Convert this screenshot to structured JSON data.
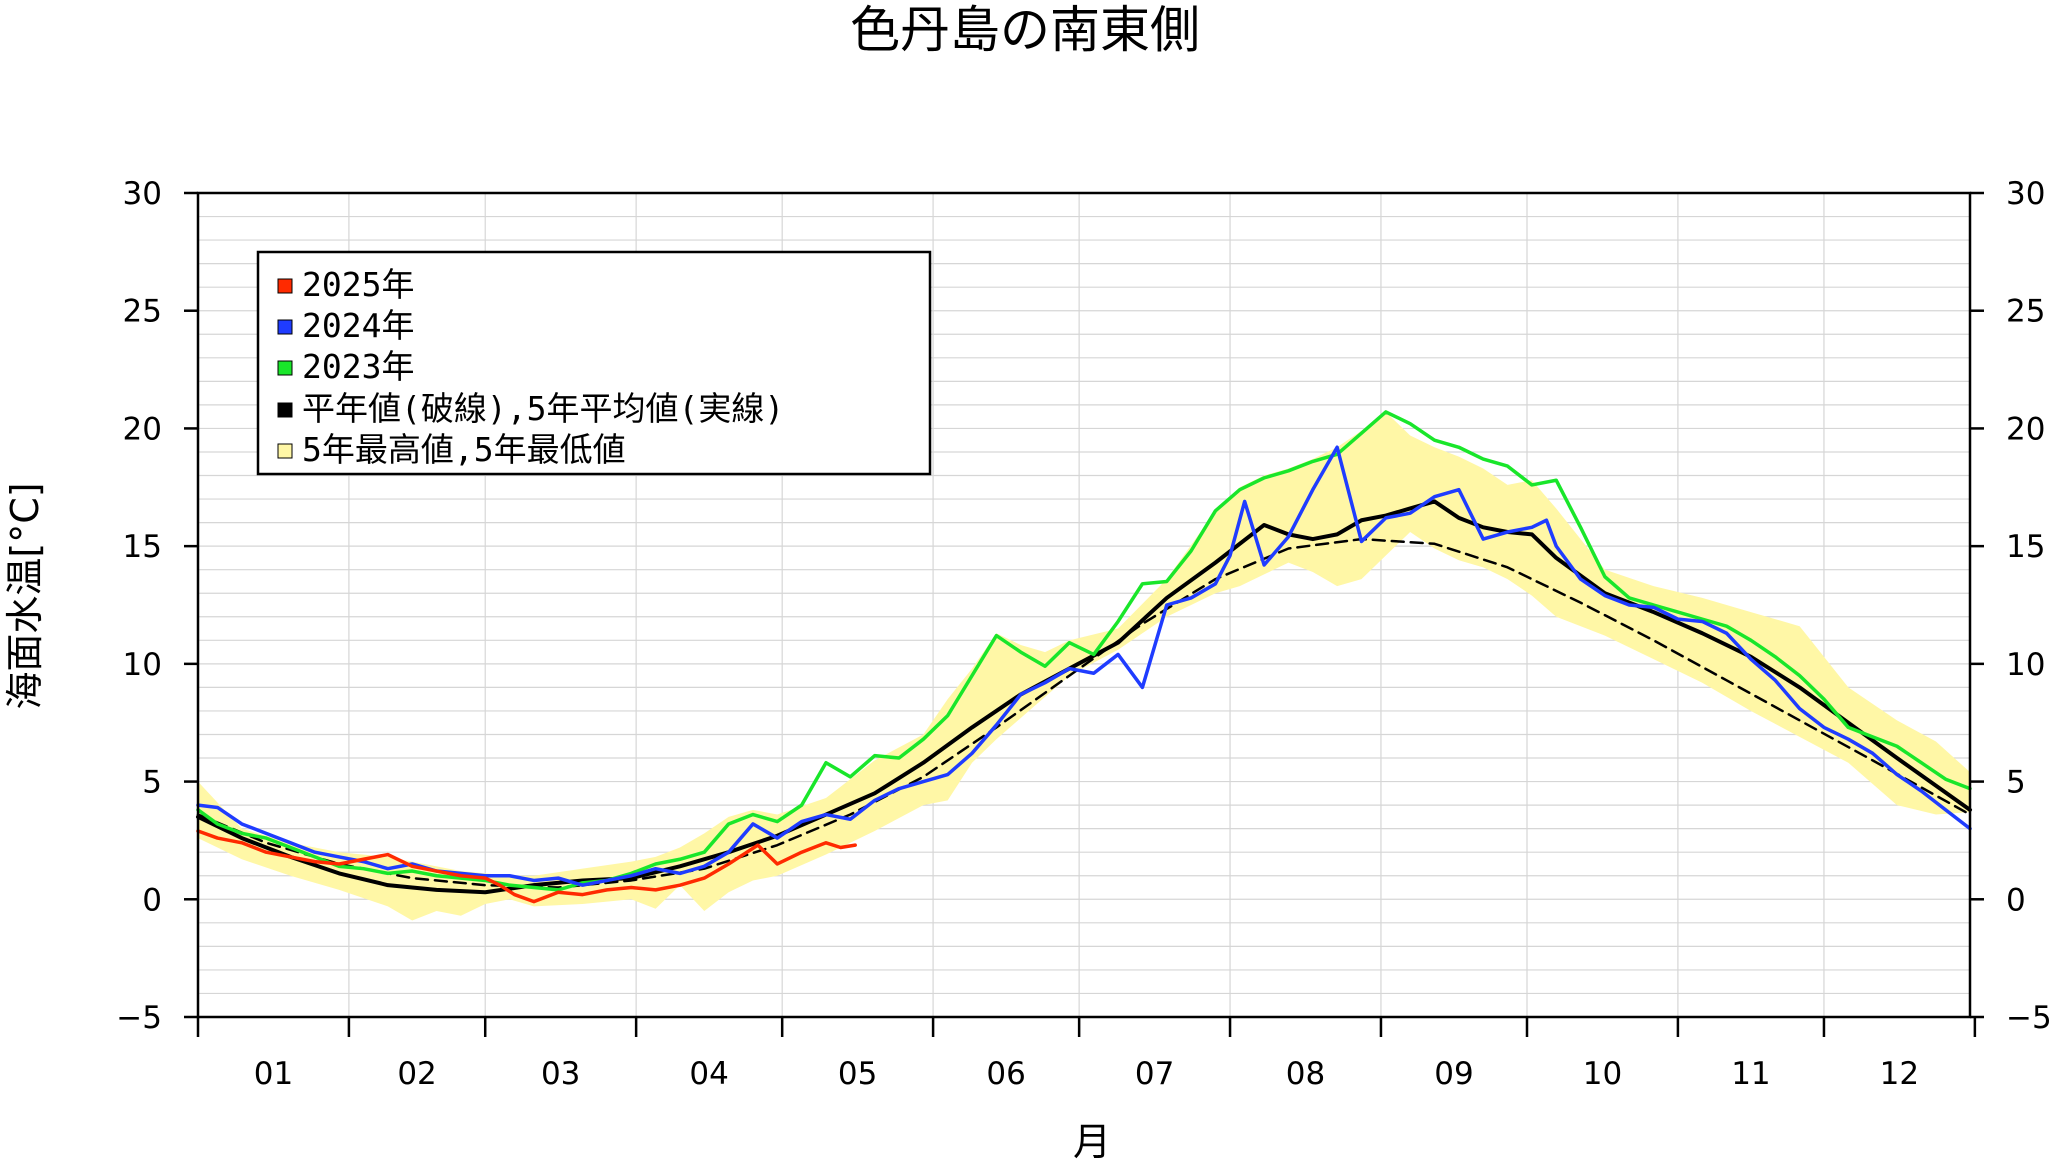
{
  "chart_data": {
    "type": "line",
    "title": "色丹島の南東側",
    "xlabel": "月",
    "ylabel": "海面水温[°C]",
    "ylim": [
      -5,
      30
    ],
    "y_ticks": [
      "−5",
      "0",
      "5",
      "10",
      "15",
      "20",
      "25",
      "30"
    ],
    "categories": [
      "01",
      "02",
      "03",
      "04",
      "05",
      "06",
      "07",
      "08",
      "09",
      "10",
      "11",
      "12"
    ],
    "grid": true,
    "legend_position": "top-left",
    "colors": {
      "y2025": "#ff2a00",
      "y2024": "#1f3cff",
      "y2023": "#19e62a",
      "normal": "#000000",
      "band": "#fff7a6"
    },
    "legend": [
      {
        "label": "2025年",
        "color": "#ff2a00"
      },
      {
        "label": "2024年",
        "color": "#1f3cff"
      },
      {
        "label": "2023年",
        "color": "#19e62a"
      },
      {
        "label": "平年値(破線),5年平均値(実線)",
        "color": "#000000"
      },
      {
        "label": "5年最高値,5年最低値",
        "color": "#fff7a6"
      }
    ],
    "x_unit": "day of year",
    "series": [
      {
        "name": "2025年",
        "x": [
          1,
          5,
          10,
          15,
          20,
          25,
          30,
          35,
          40,
          45,
          50,
          55,
          60,
          63,
          66,
          70,
          75,
          80,
          85,
          90,
          95,
          100,
          105,
          110,
          113,
          116,
          120,
          125,
          130,
          133,
          136
        ],
        "values": [
          2.9,
          2.6,
          2.4,
          2.0,
          1.8,
          1.6,
          1.5,
          1.7,
          1.9,
          1.4,
          1.2,
          1.0,
          0.9,
          0.6,
          0.2,
          -0.1,
          0.3,
          0.2,
          0.4,
          0.5,
          0.4,
          0.6,
          0.9,
          1.5,
          1.9,
          2.3,
          1.5,
          2.0,
          2.4,
          2.2,
          2.3
        ]
      },
      {
        "name": "2024年",
        "x": [
          1,
          5,
          10,
          15,
          20,
          25,
          30,
          35,
          40,
          45,
          50,
          55,
          60,
          65,
          70,
          75,
          80,
          85,
          90,
          95,
          100,
          105,
          110,
          115,
          120,
          125,
          130,
          135,
          140,
          145,
          150,
          155,
          160,
          165,
          170,
          175,
          180,
          185,
          190,
          195,
          200,
          205,
          210,
          213,
          216,
          220,
          225,
          230,
          235,
          240,
          245,
          250,
          255,
          260,
          265,
          270,
          275,
          278,
          280,
          285,
          290,
          295,
          300,
          305,
          310,
          315,
          320,
          325,
          330,
          335,
          340,
          345,
          350,
          355,
          360,
          365
        ],
        "values": [
          4.0,
          3.9,
          3.2,
          2.8,
          2.4,
          2.0,
          1.8,
          1.6,
          1.3,
          1.5,
          1.2,
          1.1,
          1.0,
          1.0,
          0.8,
          0.9,
          0.6,
          0.8,
          1.0,
          1.3,
          1.1,
          1.4,
          2.0,
          3.2,
          2.6,
          3.3,
          3.6,
          3.4,
          4.2,
          4.7,
          5.0,
          5.3,
          6.2,
          7.4,
          8.7,
          9.2,
          9.8,
          9.6,
          10.4,
          9.0,
          12.5,
          12.8,
          13.4,
          14.6,
          16.9,
          14.2,
          15.4,
          17.4,
          19.2,
          15.2,
          16.2,
          16.4,
          17.1,
          17.4,
          15.3,
          15.6,
          15.8,
          16.1,
          15.0,
          13.6,
          12.9,
          12.5,
          12.4,
          11.9,
          11.8,
          11.3,
          10.2,
          9.3,
          8.1,
          7.3,
          6.8,
          6.2,
          5.3,
          4.6,
          3.8,
          3.0
        ]
      },
      {
        "name": "2023年",
        "x": [
          1,
          5,
          10,
          15,
          20,
          25,
          30,
          35,
          40,
          45,
          50,
          55,
          60,
          65,
          70,
          75,
          80,
          85,
          90,
          95,
          100,
          105,
          110,
          115,
          120,
          125,
          130,
          135,
          140,
          145,
          150,
          155,
          160,
          165,
          170,
          175,
          180,
          185,
          190,
          195,
          200,
          205,
          210,
          215,
          220,
          225,
          230,
          235,
          240,
          245,
          250,
          255,
          260,
          265,
          270,
          275,
          280,
          285,
          290,
          295,
          300,
          305,
          310,
          315,
          320,
          325,
          330,
          335,
          340,
          345,
          350,
          355,
          360,
          365
        ],
        "values": [
          3.8,
          3.2,
          2.8,
          2.6,
          2.2,
          1.8,
          1.4,
          1.3,
          1.1,
          1.2,
          1.0,
          0.9,
          0.8,
          0.6,
          0.5,
          0.4,
          0.7,
          0.8,
          1.1,
          1.5,
          1.7,
          2.0,
          3.2,
          3.6,
          3.3,
          4.0,
          5.8,
          5.2,
          6.1,
          6.0,
          6.8,
          7.8,
          9.5,
          11.2,
          10.5,
          9.9,
          10.9,
          10.4,
          11.8,
          13.4,
          13.5,
          14.8,
          16.5,
          17.4,
          17.9,
          18.2,
          18.6,
          18.9,
          19.8,
          20.7,
          20.2,
          19.5,
          19.2,
          18.7,
          18.4,
          17.6,
          17.8,
          15.8,
          13.7,
          12.8,
          12.5,
          12.2,
          11.9,
          11.6,
          11.0,
          10.3,
          9.5,
          8.5,
          7.3,
          6.9,
          6.5,
          5.8,
          5.1,
          4.7
        ]
      },
      {
        "name": "平年値(破線)",
        "x": [
          1,
          15,
          30,
          45,
          60,
          75,
          90,
          105,
          120,
          135,
          150,
          165,
          180,
          195,
          210,
          225,
          240,
          255,
          270,
          285,
          300,
          315,
          330,
          345,
          365
        ],
        "values": [
          3.6,
          2.4,
          1.5,
          0.9,
          0.6,
          0.5,
          0.8,
          1.3,
          2.3,
          3.6,
          5.2,
          7.3,
          9.5,
          11.7,
          13.6,
          14.9,
          15.3,
          15.1,
          14.1,
          12.6,
          11.0,
          9.3,
          7.6,
          5.9,
          3.6
        ]
      },
      {
        "name": "5年平均値(実線)",
        "x": [
          1,
          10,
          20,
          30,
          40,
          50,
          60,
          70,
          80,
          90,
          100,
          110,
          120,
          130,
          140,
          150,
          160,
          170,
          180,
          190,
          200,
          210,
          220,
          225,
          230,
          235,
          240,
          245,
          250,
          255,
          260,
          265,
          270,
          275,
          280,
          290,
          300,
          310,
          320,
          330,
          340,
          350,
          365
        ],
        "values": [
          3.5,
          2.6,
          1.8,
          1.1,
          0.6,
          0.4,
          0.3,
          0.6,
          0.8,
          0.9,
          1.4,
          2.0,
          2.7,
          3.6,
          4.5,
          5.8,
          7.3,
          8.7,
          9.8,
          10.9,
          12.8,
          14.3,
          15.9,
          15.5,
          15.3,
          15.5,
          16.1,
          16.3,
          16.6,
          16.9,
          16.2,
          15.8,
          15.6,
          15.5,
          14.5,
          13.0,
          12.2,
          11.3,
          10.3,
          9.0,
          7.5,
          6.0,
          3.8
        ]
      }
    ],
    "band": {
      "name": "5年最高値,5年最低値",
      "x": [
        1,
        10,
        20,
        30,
        40,
        45,
        50,
        55,
        60,
        65,
        70,
        80,
        90,
        95,
        100,
        105,
        110,
        115,
        120,
        130,
        140,
        150,
        155,
        160,
        165,
        170,
        175,
        180,
        190,
        200,
        210,
        215,
        220,
        225,
        230,
        235,
        240,
        245,
        250,
        255,
        260,
        265,
        270,
        275,
        280,
        290,
        300,
        310,
        320,
        330,
        340,
        350,
        358,
        365
      ],
      "upper": [
        5.0,
        3.0,
        2.4,
        2.0,
        1.8,
        1.6,
        1.4,
        1.2,
        1.1,
        1.0,
        1.0,
        1.3,
        1.6,
        1.8,
        2.2,
        2.8,
        3.5,
        3.8,
        3.6,
        4.3,
        5.9,
        7.0,
        8.5,
        9.8,
        11.3,
        10.8,
        10.5,
        11.0,
        11.5,
        13.6,
        16.5,
        17.5,
        18.0,
        18.3,
        18.7,
        19.2,
        19.9,
        20.7,
        19.7,
        19.2,
        18.8,
        18.3,
        17.6,
        17.8,
        16.6,
        14.0,
        13.3,
        12.8,
        12.2,
        11.6,
        9.0,
        7.6,
        6.7,
        5.4
      ],
      "lower": [
        2.6,
        1.7,
        1.0,
        0.4,
        -0.3,
        -0.9,
        -0.5,
        -0.7,
        -0.2,
        0.0,
        -0.3,
        -0.2,
        0.0,
        -0.4,
        0.6,
        -0.5,
        0.3,
        0.8,
        1.0,
        1.9,
        2.9,
        4.0,
        4.2,
        5.8,
        6.8,
        7.7,
        8.6,
        9.5,
        10.6,
        12.0,
        13.0,
        13.3,
        13.8,
        14.3,
        13.9,
        13.3,
        13.6,
        14.6,
        15.6,
        14.9,
        14.4,
        14.1,
        13.6,
        12.9,
        12.0,
        11.2,
        10.2,
        9.2,
        8.0,
        6.9,
        5.8,
        4.0,
        3.6,
        3.7
      ]
    }
  }
}
